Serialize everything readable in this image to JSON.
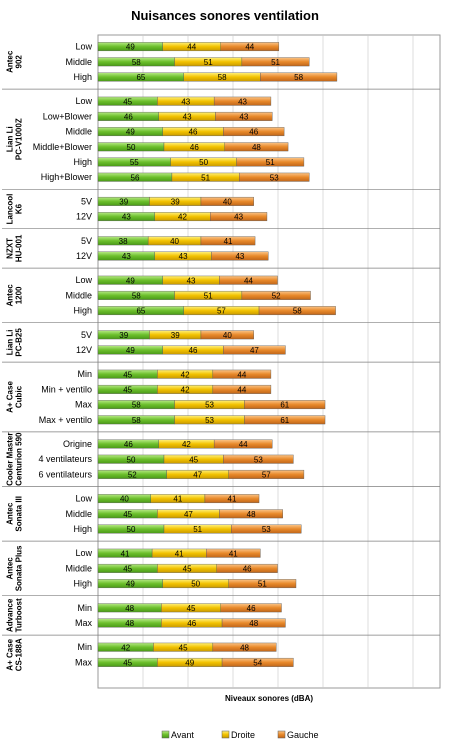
{
  "chart_data": {
    "type": "bar",
    "stacked": true,
    "orientation": "horizontal",
    "title": "Nuisances sonores ventilation",
    "xlabel": "Niveaux sonores (dBA)",
    "ylabel": "",
    "grid": true,
    "legend_position": "bottom",
    "series": [
      {
        "name": "Avant",
        "color": "#6cbf2c"
      },
      {
        "name": "Droite",
        "color": "#f2c200"
      },
      {
        "name": "Gauche",
        "color": "#e8892a"
      }
    ],
    "groups": [
      {
        "label_lines": [
          "Antec",
          "902"
        ],
        "rows": [
          {
            "label": "Low",
            "values": [
              49,
              44,
              44
            ]
          },
          {
            "label": "Middle",
            "values": [
              58,
              51,
              51
            ]
          },
          {
            "label": "High",
            "values": [
              65,
              58,
              58
            ]
          }
        ]
      },
      {
        "label_lines": [
          "Lian Li",
          "PC-V1000Z"
        ],
        "rows": [
          {
            "label": "Low",
            "values": [
              45,
              43,
              43
            ]
          },
          {
            "label": "Low+Blower",
            "values": [
              46,
              43,
              43
            ]
          },
          {
            "label": "Middle",
            "values": [
              49,
              46,
              46
            ]
          },
          {
            "label": "Middle+Blower",
            "values": [
              50,
              46,
              48
            ]
          },
          {
            "label": "High",
            "values": [
              55,
              50,
              51
            ]
          },
          {
            "label": "High+Blower",
            "values": [
              56,
              51,
              53
            ]
          }
        ]
      },
      {
        "label_lines": [
          "Lancool",
          "K6"
        ],
        "rows": [
          {
            "label": "5V",
            "values": [
              39,
              39,
              40
            ]
          },
          {
            "label": "12V",
            "values": [
              43,
              42,
              43
            ]
          }
        ]
      },
      {
        "label_lines": [
          "NZXT",
          "HU-001"
        ],
        "rows": [
          {
            "label": "5V",
            "values": [
              38,
              40,
              41
            ]
          },
          {
            "label": "12V",
            "values": [
              43,
              43,
              43
            ]
          }
        ]
      },
      {
        "label_lines": [
          "Antec",
          "1200"
        ],
        "rows": [
          {
            "label": "Low",
            "values": [
              49,
              43,
              44
            ]
          },
          {
            "label": "Middle",
            "values": [
              58,
              51,
              52
            ]
          },
          {
            "label": "High",
            "values": [
              65,
              57,
              58
            ]
          }
        ]
      },
      {
        "label_lines": [
          "Lian Li",
          "PC-B25"
        ],
        "rows": [
          {
            "label": "5V",
            "values": [
              39,
              39,
              40
            ]
          },
          {
            "label": "12V",
            "values": [
              49,
              46,
              47
            ]
          }
        ]
      },
      {
        "label_lines": [
          "A+ Case",
          "Cubic"
        ],
        "rows": [
          {
            "label": "Min",
            "values": [
              45,
              42,
              44
            ]
          },
          {
            "label": "Min + ventilo",
            "values": [
              45,
              42,
              44
            ]
          },
          {
            "label": "Max",
            "values": [
              58,
              53,
              61
            ]
          },
          {
            "label": "Max + ventilo",
            "values": [
              58,
              53,
              61
            ]
          }
        ]
      },
      {
        "label_lines": [
          "Cooler Master",
          "Centurion 590"
        ],
        "rows": [
          {
            "label": "Origine",
            "values": [
              46,
              42,
              44
            ]
          },
          {
            "label": "4 ventilateurs",
            "values": [
              50,
              45,
              53
            ]
          },
          {
            "label": "6 ventilateurs",
            "values": [
              52,
              47,
              57
            ]
          }
        ]
      },
      {
        "label_lines": [
          "Antec",
          "Sonata III"
        ],
        "rows": [
          {
            "label": "Low",
            "values": [
              40,
              41,
              41
            ]
          },
          {
            "label": "Middle",
            "values": [
              45,
              47,
              48
            ]
          },
          {
            "label": "High",
            "values": [
              50,
              51,
              53
            ]
          }
        ]
      },
      {
        "label_lines": [
          "Antec",
          "Sonata Plus"
        ],
        "rows": [
          {
            "label": "Low",
            "values": [
              41,
              41,
              41
            ]
          },
          {
            "label": "Middle",
            "values": [
              45,
              45,
              46
            ]
          },
          {
            "label": "High",
            "values": [
              49,
              50,
              51
            ]
          }
        ]
      },
      {
        "label_lines": [
          "Advance",
          "Turboost"
        ],
        "rows": [
          {
            "label": "Min",
            "values": [
              48,
              45,
              46
            ]
          },
          {
            "label": "Max",
            "values": [
              48,
              46,
              48
            ]
          }
        ]
      },
      {
        "label_lines": [
          "A+ Case",
          "CS-188A"
        ],
        "rows": [
          {
            "label": "Min",
            "values": [
              42,
              45,
              48
            ]
          },
          {
            "label": "Max",
            "values": [
              45,
              49,
              54
            ]
          }
        ]
      }
    ]
  }
}
